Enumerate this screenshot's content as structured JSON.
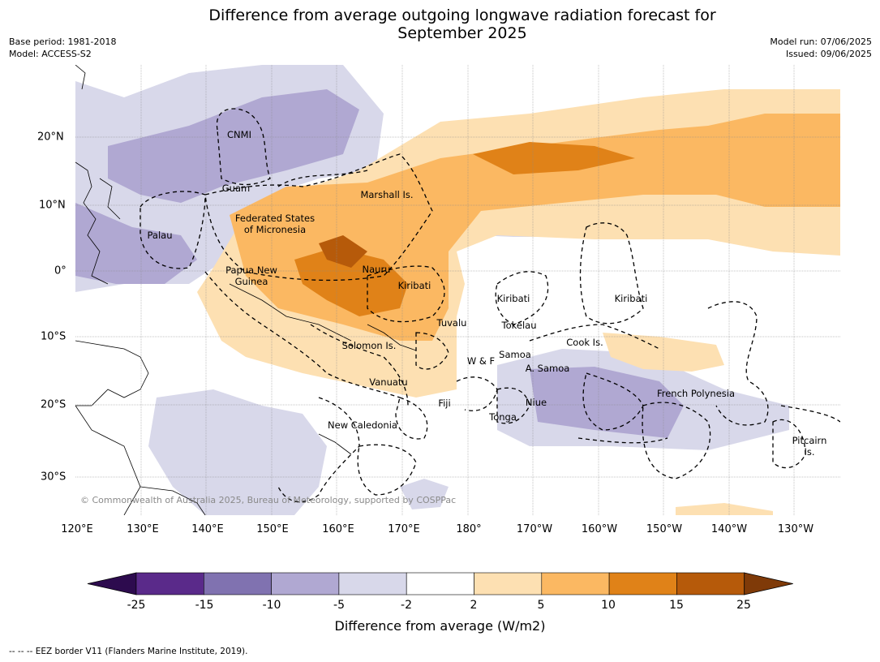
{
  "header": {
    "title_line1": "Difference from average outgoing longwave radiation forecast for",
    "title_line2": "September 2025",
    "base_period": "Base period: 1981-2018",
    "model": "Model: ACCESS-S2",
    "model_run": "Model run: 07/06/2025",
    "issued": "Issued: 09/06/2025"
  },
  "map": {
    "lon_ticks": [
      "120°E",
      "130°E",
      "140°E",
      "150°E",
      "160°E",
      "170°E",
      "180°",
      "170°W",
      "160°W",
      "150°W",
      "140°W",
      "130°W"
    ],
    "lat_ticks": [
      "20°N",
      "10°N",
      "0°",
      "10°S",
      "20°S",
      "30°S"
    ],
    "copyright": "© Commonwealth of Australia 2025, Bureau of Meteorology, supported by COSPPac",
    "region_labels": [
      {
        "id": "cnmi",
        "text": "CNMI"
      },
      {
        "id": "guam",
        "text": "Guam"
      },
      {
        "id": "marshall",
        "text": "Marshall Is."
      },
      {
        "id": "fsm1",
        "text": "Federated States"
      },
      {
        "id": "fsm2",
        "text": "of Micronesia"
      },
      {
        "id": "palau",
        "text": "Palau"
      },
      {
        "id": "png1",
        "text": "Papua New"
      },
      {
        "id": "png2",
        "text": "Guinea"
      },
      {
        "id": "nauru",
        "text": "Nauru"
      },
      {
        "id": "kiribati1",
        "text": "Kiribati"
      },
      {
        "id": "kiribati2",
        "text": "Kiribati"
      },
      {
        "id": "kiribati3",
        "text": "Kiribati"
      },
      {
        "id": "tuvalu",
        "text": "Tuvalu"
      },
      {
        "id": "tokelau",
        "text": "Tokelau"
      },
      {
        "id": "solomon",
        "text": "Solomon Is."
      },
      {
        "id": "samoa",
        "text": "Samoa"
      },
      {
        "id": "wf",
        "text": "W & F"
      },
      {
        "id": "asamoa",
        "text": "A. Samoa"
      },
      {
        "id": "cook",
        "text": "Cook Is."
      },
      {
        "id": "vanuatu",
        "text": "Vanuatu"
      },
      {
        "id": "fiji",
        "text": "Fiji"
      },
      {
        "id": "niue",
        "text": "Niue"
      },
      {
        "id": "tonga",
        "text": "Tonga"
      },
      {
        "id": "newcal",
        "text": "New Caledonia"
      },
      {
        "id": "frpoly",
        "text": "French Polynesia"
      },
      {
        "id": "pitcairn1",
        "text": "Pitcairn"
      },
      {
        "id": "pitcairn2",
        "text": "Is."
      }
    ]
  },
  "colorbar": {
    "title": "Difference from average (W/m2)",
    "tick_labels": [
      "-25",
      "-15",
      "-10",
      "-5",
      "-2",
      "2",
      "5",
      "10",
      "15",
      "25"
    ],
    "bins": [
      {
        "range": "< -25",
        "color": "#2d0b4e"
      },
      {
        "range": "-25 to -15",
        "color": "#5a2a8a"
      },
      {
        "range": "-15 to -10",
        "color": "#8072b0"
      },
      {
        "range": "-10 to -5",
        "color": "#b0a8d2"
      },
      {
        "range": "-5 to -2",
        "color": "#d8d8ea"
      },
      {
        "range": "-2 to 2",
        "color": "#ffffff"
      },
      {
        "range": "2 to 5",
        "color": "#fde0b2"
      },
      {
        "range": "5 to 10",
        "color": "#fbb862"
      },
      {
        "range": "10 to 15",
        "color": "#e08218"
      },
      {
        "range": "15 to 25",
        "color": "#b65a0a"
      },
      {
        "range": "> 25",
        "color": "#7f3a08"
      }
    ]
  },
  "footer": {
    "legend_text": "--  --  -- EEZ border V11 (Flanders Marine Institute, 2019)."
  }
}
